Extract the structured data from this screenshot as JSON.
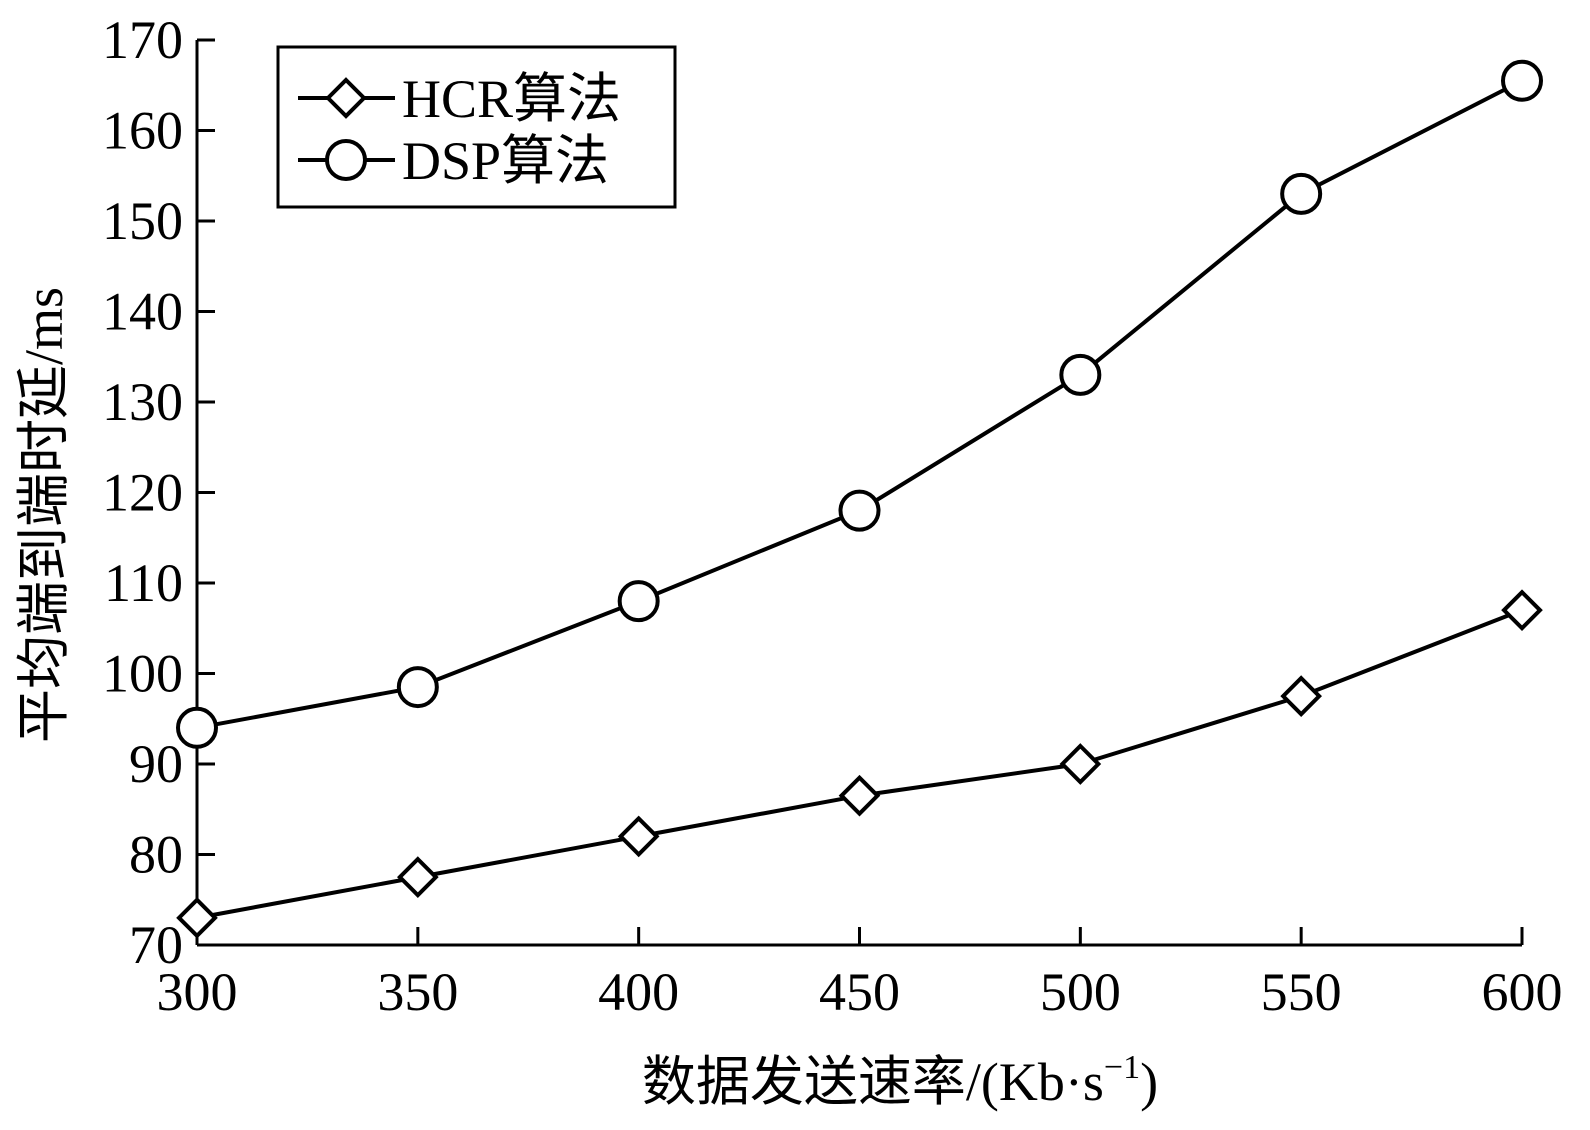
{
  "chart_data": {
    "type": "line",
    "title": "",
    "xlabel": "数据发送速率/(Kb·s",
    "xlabel_sup": "−1",
    "xlabel_suffix": ")",
    "ylabel": "平均端到端时延/ms",
    "x": [
      300,
      350,
      400,
      450,
      500,
      550,
      600
    ],
    "xlim": [
      300,
      600
    ],
    "ylim": [
      70,
      170
    ],
    "xticks": [
      "300",
      "350",
      "400",
      "450",
      "500",
      "550",
      "600"
    ],
    "yticks": [
      "70",
      "80",
      "90",
      "100",
      "110",
      "120",
      "130",
      "140",
      "150",
      "160",
      "170"
    ],
    "grid": false,
    "legend_position": "top-left",
    "series": [
      {
        "name": "HCR算法",
        "marker": "diamond",
        "values": [
          73,
          77.5,
          82,
          86.5,
          90,
          97.5,
          107
        ]
      },
      {
        "name": "DSP算法",
        "marker": "circle",
        "values": [
          94,
          98.5,
          108,
          118,
          133,
          153,
          165.5
        ]
      }
    ]
  }
}
